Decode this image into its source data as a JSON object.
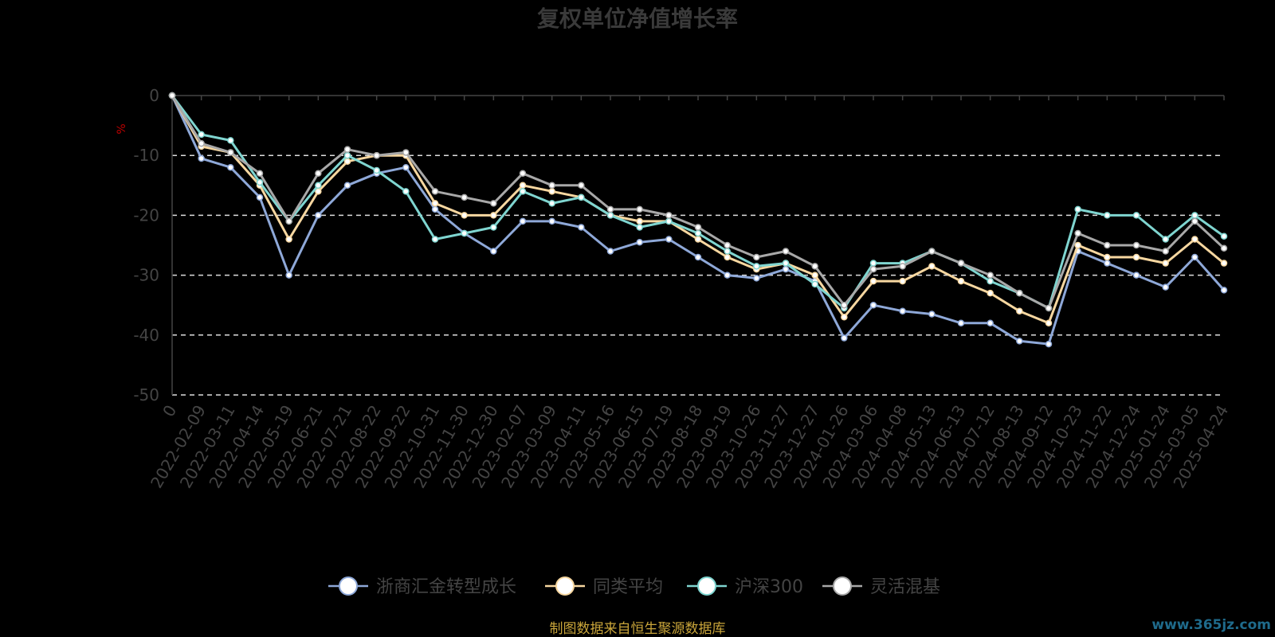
{
  "chart_data": {
    "type": "line",
    "title": "复权单位净值增长率",
    "ylabel": "%",
    "ylim": [
      -50,
      0
    ],
    "yticks": [
      0,
      -10,
      -20,
      -30,
      -40,
      -50
    ],
    "grid": true,
    "legend_position": "bottom",
    "x": [
      "0",
      "2022-02-09",
      "2022-03-11",
      "2022-04-14",
      "2022-05-19",
      "2022-06-21",
      "2022-07-21",
      "2022-08-22",
      "2022-09-22",
      "2022-10-31",
      "2022-11-30",
      "2022-12-30",
      "2023-02-07",
      "2023-03-09",
      "2023-04-11",
      "2023-05-16",
      "2023-06-15",
      "2023-07-19",
      "2023-08-18",
      "2023-09-19",
      "2023-10-26",
      "2023-11-27",
      "2023-12-27",
      "2024-01-26",
      "2024-03-06",
      "2024-04-08",
      "2024-05-13",
      "2024-06-13",
      "2024-07-12",
      "2024-08-13",
      "2024-09-12",
      "2024-10-23",
      "2024-11-22",
      "2024-12-24",
      "2025-01-24",
      "2025-03-05",
      "2025-04-24"
    ],
    "series": [
      {
        "name": "浙商汇金转型成长",
        "color": "#8ea8d8",
        "values": [
          0,
          -10.5,
          -12,
          -17,
          -30,
          -20,
          -15,
          -13,
          -12,
          -19,
          -23,
          -26,
          -21,
          -21,
          -22,
          -26,
          -24.5,
          -24,
          -27,
          -30,
          -30.5,
          -29,
          -31,
          -40.5,
          -35,
          -36,
          -36.5,
          -38,
          -38,
          -41,
          -41.5,
          -26,
          -28,
          -30,
          -32,
          -27,
          -32.5
        ]
      },
      {
        "name": "同类平均",
        "color": "#f7d7a0",
        "values": [
          0,
          -8.5,
          -9.5,
          -15,
          -24,
          -16,
          -11,
          -10,
          -10,
          -18,
          -20,
          -20,
          -15,
          -16,
          -17,
          -20,
          -21,
          -21,
          -24,
          -27,
          -29,
          -28,
          -30,
          -37,
          -31,
          -31,
          -28.5,
          -31,
          -33,
          -36,
          -38,
          -25,
          -27,
          -27,
          -28,
          -24,
          -28
        ]
      },
      {
        "name": "沪深300",
        "color": "#7fd5d0",
        "values": [
          0,
          -6.5,
          -7.5,
          -14.5,
          -21,
          -15,
          -10,
          -12.5,
          -16,
          -24,
          -23,
          -22,
          -16,
          -18,
          -17,
          -20,
          -22,
          -21,
          -23,
          -26,
          -28.5,
          -28,
          -31.5,
          -35.5,
          -28,
          -28,
          -26,
          -28,
          -31,
          -33,
          -35.5,
          -19,
          -20,
          -20,
          -24,
          -20,
          -23.5
        ]
      },
      {
        "name": "灵活混基",
        "color": "#a8a8a8",
        "values": [
          0,
          -8,
          -9.5,
          -13,
          -21,
          -13,
          -9,
          -10,
          -9.5,
          -16,
          -17,
          -18,
          -13,
          -15,
          -15,
          -19,
          -19,
          -20,
          -22,
          -25,
          -27,
          -26,
          -28.5,
          -35,
          -29,
          -28.5,
          -26,
          -28,
          -30,
          -33,
          -35.5,
          -23,
          -25,
          -25,
          -26,
          -21,
          -25.5
        ]
      }
    ]
  },
  "footer": {
    "source": "制图数据来自恒生聚源数据库",
    "watermark": "www.365jz.com"
  },
  "colors": {
    "background": "#000000",
    "grid": "#dddddd",
    "axis": "#444444"
  }
}
